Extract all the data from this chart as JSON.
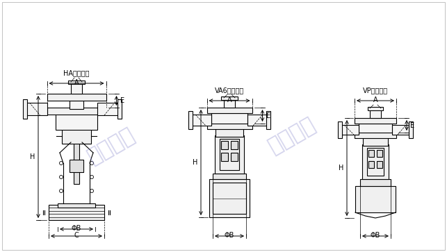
{
  "bg_color": "#ffffff",
  "line_color": "#000000",
  "dim_color": "#000000",
  "watermark_color": "#8888cc",
  "watermark_alpha": 0.35,
  "watermark_texts": [
    "业欣阀门",
    "业欣阀门"
  ],
  "labels": {
    "ha": "HA执行机构",
    "va6": "VA6执行机构",
    "vp": "VP执行机构"
  },
  "dim_labels": [
    "C",
    "ΦB",
    "H",
    "A",
    "E"
  ],
  "figsize": [
    6.43,
    3.63
  ],
  "dpi": 100
}
